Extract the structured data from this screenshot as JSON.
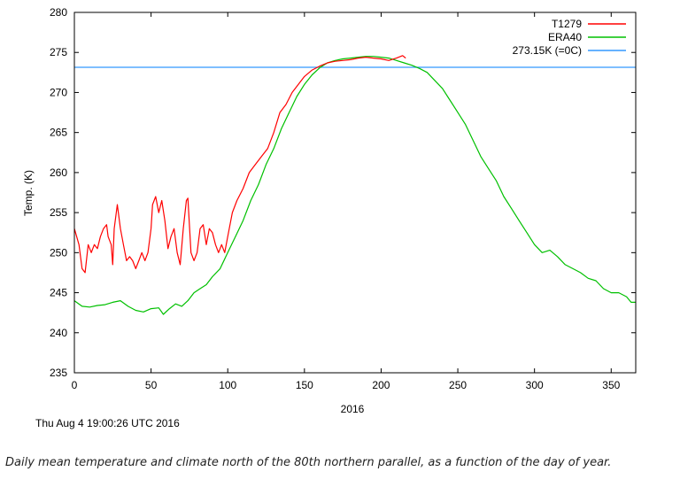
{
  "chart_data": {
    "type": "line",
    "xlabel": "2016",
    "ylabel": "Temp. (K)",
    "xlim": [
      0,
      366
    ],
    "ylim": [
      235,
      280
    ],
    "x_ticks": [
      0,
      50,
      100,
      150,
      200,
      250,
      300,
      350
    ],
    "y_ticks": [
      235,
      240,
      245,
      250,
      255,
      260,
      265,
      270,
      275,
      280
    ],
    "grid": false,
    "legend_position": "top-right",
    "series": [
      {
        "name": "T1279",
        "color": "#ff0000",
        "points": [
          [
            0,
            253
          ],
          [
            3,
            251
          ],
          [
            5,
            248
          ],
          [
            7,
            247.5
          ],
          [
            9,
            251
          ],
          [
            11,
            250
          ],
          [
            13,
            251
          ],
          [
            15,
            250.5
          ],
          [
            17,
            252
          ],
          [
            19,
            253
          ],
          [
            21,
            253.5
          ],
          [
            22,
            252
          ],
          [
            24,
            251
          ],
          [
            25,
            248.5
          ],
          [
            26,
            253
          ],
          [
            28,
            256
          ],
          [
            30,
            253
          ],
          [
            32,
            251
          ],
          [
            34,
            249
          ],
          [
            36,
            249.5
          ],
          [
            38,
            249
          ],
          [
            40,
            248
          ],
          [
            42,
            249
          ],
          [
            44,
            250
          ],
          [
            46,
            249
          ],
          [
            48,
            250
          ],
          [
            50,
            253
          ],
          [
            51,
            256
          ],
          [
            53,
            257
          ],
          [
            55,
            255
          ],
          [
            57,
            256.5
          ],
          [
            59,
            254
          ],
          [
            61,
            250.5
          ],
          [
            63,
            252
          ],
          [
            65,
            253
          ],
          [
            67,
            250
          ],
          [
            69,
            248.5
          ],
          [
            71,
            253
          ],
          [
            73,
            256.5
          ],
          [
            74,
            256.8
          ],
          [
            76,
            250
          ],
          [
            78,
            249
          ],
          [
            80,
            250
          ],
          [
            82,
            253
          ],
          [
            84,
            253.5
          ],
          [
            86,
            251
          ],
          [
            88,
            253
          ],
          [
            90,
            252.5
          ],
          [
            92,
            251
          ],
          [
            94,
            250
          ],
          [
            96,
            251
          ],
          [
            98,
            250
          ],
          [
            100,
            252
          ],
          [
            103,
            255
          ],
          [
            106,
            256.5
          ],
          [
            110,
            258
          ],
          [
            114,
            260
          ],
          [
            118,
            261
          ],
          [
            122,
            262
          ],
          [
            126,
            263
          ],
          [
            130,
            265
          ],
          [
            134,
            267.5
          ],
          [
            138,
            268.5
          ],
          [
            142,
            270
          ],
          [
            146,
            271
          ],
          [
            150,
            272
          ],
          [
            155,
            272.8
          ],
          [
            160,
            273.3
          ],
          [
            165,
            273.7
          ],
          [
            170,
            273.9
          ],
          [
            175,
            274
          ],
          [
            180,
            274.1
          ],
          [
            185,
            274.3
          ],
          [
            190,
            274.4
          ],
          [
            195,
            274.3
          ],
          [
            200,
            274.2
          ],
          [
            205,
            274
          ],
          [
            210,
            274.3
          ],
          [
            214,
            274.6
          ],
          [
            216,
            274.3
          ]
        ]
      },
      {
        "name": "ERA40",
        "color": "#00c000",
        "points": [
          [
            0,
            244
          ],
          [
            5,
            243.3
          ],
          [
            10,
            243.2
          ],
          [
            15,
            243.4
          ],
          [
            20,
            243.5
          ],
          [
            25,
            243.8
          ],
          [
            30,
            244
          ],
          [
            35,
            243.3
          ],
          [
            40,
            242.8
          ],
          [
            45,
            242.6
          ],
          [
            50,
            243
          ],
          [
            55,
            243.1
          ],
          [
            58,
            242.3
          ],
          [
            62,
            243
          ],
          [
            66,
            243.6
          ],
          [
            70,
            243.3
          ],
          [
            74,
            244
          ],
          [
            78,
            245
          ],
          [
            82,
            245.5
          ],
          [
            86,
            246
          ],
          [
            90,
            247
          ],
          [
            95,
            248
          ],
          [
            100,
            250
          ],
          [
            105,
            252
          ],
          [
            110,
            254
          ],
          [
            115,
            256.5
          ],
          [
            120,
            258.5
          ],
          [
            125,
            261
          ],
          [
            130,
            263
          ],
          [
            135,
            265.5
          ],
          [
            140,
            267.5
          ],
          [
            145,
            269.5
          ],
          [
            150,
            271
          ],
          [
            155,
            272.2
          ],
          [
            160,
            273.1
          ],
          [
            165,
            273.7
          ],
          [
            170,
            274
          ],
          [
            175,
            274.2
          ],
          [
            180,
            274.3
          ],
          [
            185,
            274.4
          ],
          [
            190,
            274.5
          ],
          [
            195,
            274.5
          ],
          [
            200,
            274.4
          ],
          [
            205,
            274.3
          ],
          [
            210,
            274
          ],
          [
            215,
            273.7
          ],
          [
            220,
            273.4
          ],
          [
            225,
            273
          ],
          [
            230,
            272.5
          ],
          [
            235,
            271.5
          ],
          [
            240,
            270.5
          ],
          [
            245,
            269
          ],
          [
            250,
            267.5
          ],
          [
            255,
            266
          ],
          [
            260,
            264
          ],
          [
            265,
            262
          ],
          [
            270,
            260.5
          ],
          [
            275,
            259
          ],
          [
            280,
            257
          ],
          [
            285,
            255.5
          ],
          [
            290,
            254
          ],
          [
            295,
            252.5
          ],
          [
            300,
            251
          ],
          [
            305,
            250
          ],
          [
            310,
            250.3
          ],
          [
            315,
            249.5
          ],
          [
            320,
            248.5
          ],
          [
            325,
            248
          ],
          [
            330,
            247.5
          ],
          [
            335,
            246.8
          ],
          [
            340,
            246.5
          ],
          [
            345,
            245.5
          ],
          [
            350,
            245
          ],
          [
            355,
            245
          ],
          [
            360,
            244.5
          ],
          [
            363,
            243.8
          ],
          [
            366,
            243.8
          ]
        ]
      },
      {
        "name": "273.15K (=0C)",
        "color": "#3399ff",
        "points": [
          [
            0,
            273.15
          ],
          [
            366,
            273.15
          ]
        ]
      }
    ]
  },
  "footer": {
    "timestamp": "Thu Aug  4 19:00:26 UTC 2016",
    "caption": "Daily mean temperature and climate north of the 80th northern parallel, as a function of the day of year."
  }
}
